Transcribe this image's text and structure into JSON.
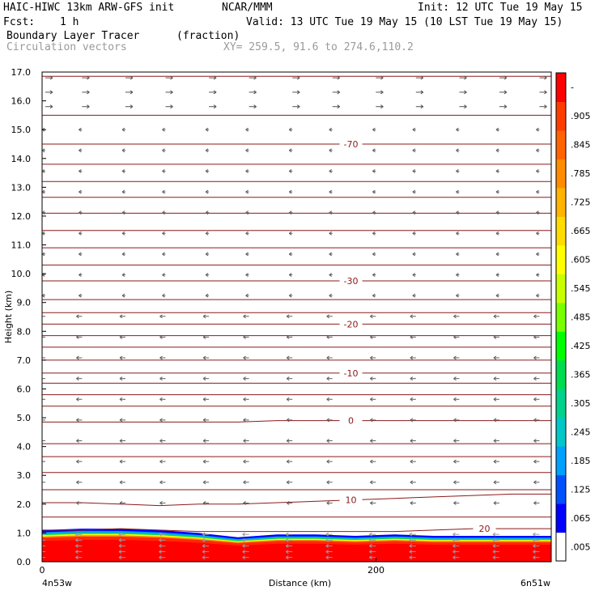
{
  "header": {
    "model": "HAIC-HIWC 13km ARW-GFS init",
    "center": "NCAR/MMM",
    "init": "Init: 12 UTC Tue 19 May 15",
    "fcst_label": "Fcst:",
    "fcst_value": "1 h",
    "valid": "Valid: 13 UTC Tue 19 May 15 (10 LST Tue 19 May 15)",
    "field": "Boundary Layer Tracer",
    "units": "(fraction)",
    "vectors": "Circulation vectors",
    "xy": "XY= 259.5, 91.6 to 274.6,110.2"
  },
  "chart_data": {
    "type": "cross-section",
    "ylabel": "Height (km)",
    "xlabel": "Distance (km)",
    "xlim": [
      0,
      305
    ],
    "ylim": [
      0,
      17
    ],
    "y_ticks": [
      "0.0",
      "1.0",
      "2.0",
      "3.0",
      "4.0",
      "5.0",
      "6.0",
      "7.0",
      "8.0",
      "9.0",
      "10.0",
      "11.0",
      "12.0",
      "13.0",
      "14.0",
      "15.0",
      "16.0",
      "17.0"
    ],
    "x_ticks": [
      {
        "value": 0,
        "label": "0"
      },
      {
        "value": 200,
        "label": "200"
      }
    ],
    "x_left_label": "4n53w",
    "x_right_label": "6n51w",
    "colorbar_labels": [
      ".005",
      ".065",
      ".125",
      ".185",
      ".245",
      ".305",
      ".365",
      ".425",
      ".485",
      ".545",
      ".605",
      ".665",
      ".725",
      ".785",
      ".845",
      ".905",
      "-"
    ],
    "colorbar_colors": [
      "#ffffff",
      "#0000ff",
      "#0050ff",
      "#00a0ff",
      "#00c8c8",
      "#00d28c",
      "#00dc50",
      "#00ff00",
      "#78ff00",
      "#c8ff00",
      "#ffff00",
      "#ffdc00",
      "#ffb400",
      "#ff8c00",
      "#ff6400",
      "#ff3c00",
      "#ff0000"
    ],
    "temperature_contours": [
      {
        "label": "20",
        "label_x": 265,
        "heights": [
          1.1,
          1.1,
          1.15,
          1.1,
          1.05,
          1.05,
          1.05,
          1.05,
          1.05,
          1.05,
          1.1,
          1.15,
          1.15,
          1.15
        ]
      },
      {
        "label": "10",
        "label_x": 185,
        "heights": [
          2.05,
          2.05,
          2.0,
          1.95,
          2.0,
          2.0,
          2.05,
          2.1,
          2.15,
          2.2,
          2.25,
          2.3,
          2.35,
          2.35
        ]
      },
      {
        "label": "0",
        "label_x": 185,
        "heights": [
          4.85,
          4.85,
          4.85,
          4.85,
          4.85,
          4.85,
          4.9,
          4.9,
          4.9,
          4.9,
          4.9,
          4.9,
          4.9,
          4.9
        ]
      },
      {
        "label": "-10",
        "label_x": 185,
        "heights": [
          6.55,
          6.55,
          6.55,
          6.55,
          6.55,
          6.55,
          6.55,
          6.55,
          6.55,
          6.55,
          6.55,
          6.55,
          6.55,
          6.55
        ]
      },
      {
        "label": "-20",
        "label_x": 185,
        "heights": [
          8.25,
          8.25,
          8.25,
          8.25,
          8.25,
          8.25,
          8.25,
          8.25,
          8.25,
          8.25,
          8.25,
          8.25,
          8.25,
          8.25
        ]
      },
      {
        "label": "-30",
        "label_x": 185,
        "heights": [
          9.75,
          9.75,
          9.75,
          9.75,
          9.75,
          9.75,
          9.75,
          9.75,
          9.75,
          9.75,
          9.75,
          9.75,
          9.75,
          9.75
        ]
      },
      {
        "label": "-70",
        "label_x": 185,
        "heights": [
          14.5,
          14.5,
          14.5,
          14.5,
          14.5,
          14.5,
          14.5,
          14.5,
          14.5,
          14.5,
          14.5,
          14.5,
          14.5,
          14.5
        ]
      }
    ],
    "unlabeled_contour_levels": [
      1.55,
      2.5,
      3.1,
      3.65,
      4.1,
      5.4,
      5.8,
      6.2,
      7.0,
      7.45,
      7.85,
      8.65,
      9.1,
      10.3,
      10.9,
      11.5,
      12.1,
      12.65,
      13.2,
      13.8,
      15.5,
      16.85
    ],
    "tracer_top": [
      1.1,
      1.15,
      1.15,
      1.1,
      1.0,
      0.85,
      0.95,
      0.95,
      0.9,
      0.95,
      0.9,
      0.9,
      0.9,
      0.9
    ],
    "wind_vectors": {
      "columns": [
        0,
        22,
        48,
        72,
        98,
        122,
        148,
        172,
        198,
        222,
        248,
        272,
        296
      ],
      "upper_levels": [
        16.8,
        16.3,
        15.8
      ],
      "upper_direction": "east",
      "mid_direction": "west",
      "near_surface_direction": "west"
    }
  }
}
